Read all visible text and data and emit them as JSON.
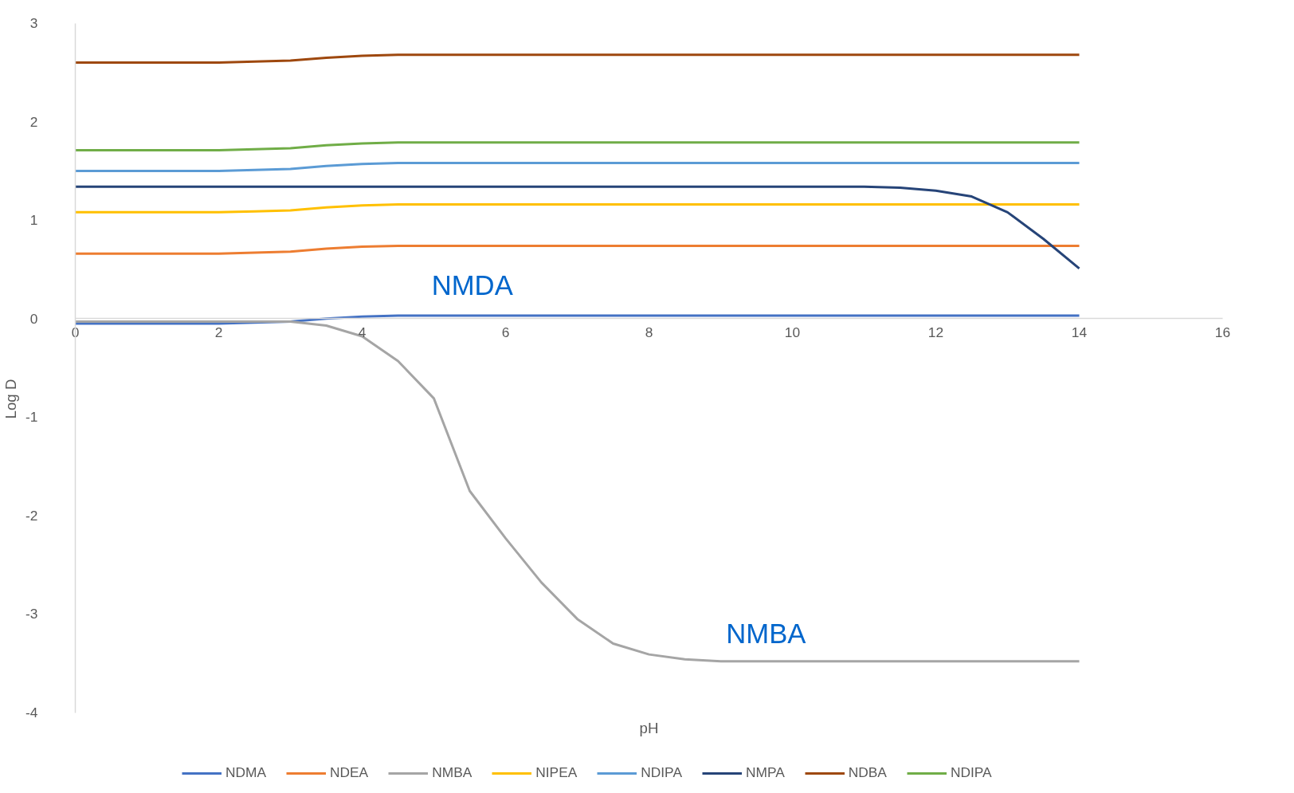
{
  "chart_data": {
    "type": "line",
    "xlabel": "pH",
    "ylabel": "Log D",
    "x": [
      0,
      0.5,
      1,
      1.5,
      2,
      2.5,
      3,
      3.5,
      4,
      4.5,
      5,
      5.5,
      6,
      6.5,
      7,
      7.5,
      8,
      8.5,
      9,
      9.5,
      10,
      10.5,
      11,
      11.5,
      12,
      12.5,
      13,
      13.5,
      14
    ],
    "xlim": [
      0,
      16
    ],
    "xticks": [
      0,
      2,
      4,
      6,
      8,
      10,
      12,
      14,
      16
    ],
    "ylim": [
      -4,
      3
    ],
    "yticks": [
      -4,
      -3,
      -2,
      -1,
      0,
      1,
      2,
      3
    ],
    "grid": false,
    "legend": "bottom",
    "marker": "none",
    "line_style": "solid",
    "series": [
      {
        "name": "NDMA",
        "color": "#4472c4",
        "values": [
          -0.05,
          -0.05,
          -0.05,
          -0.05,
          -0.05,
          -0.04,
          -0.03,
          0,
          0.02,
          0.03,
          0.03,
          0.03,
          0.03,
          0.03,
          0.03,
          0.03,
          0.03,
          0.03,
          0.03,
          0.03,
          0.03,
          0.03,
          0.03,
          0.03,
          0.03,
          0.03,
          0.03,
          0.03,
          0.03
        ]
      },
      {
        "name": "NDEA",
        "color": "#ed7d31",
        "values": [
          0.66,
          0.66,
          0.66,
          0.66,
          0.66,
          0.67,
          0.68,
          0.71,
          0.73,
          0.74,
          0.74,
          0.74,
          0.74,
          0.74,
          0.74,
          0.74,
          0.74,
          0.74,
          0.74,
          0.74,
          0.74,
          0.74,
          0.74,
          0.74,
          0.74,
          0.74,
          0.74,
          0.74,
          0.74
        ]
      },
      {
        "name": "NMBA",
        "color": "#a5a5a5",
        "values": [
          -0.03,
          -0.03,
          -0.03,
          -0.03,
          -0.03,
          -0.03,
          -0.03,
          -0.07,
          -0.18,
          -0.43,
          -0.81,
          -1.75,
          -2.23,
          -2.68,
          -3.05,
          -3.3,
          -3.41,
          -3.46,
          -3.48,
          -3.48,
          -3.48,
          -3.48,
          -3.48,
          -3.48,
          -3.48,
          -3.48,
          -3.48,
          -3.48,
          -3.48
        ]
      },
      {
        "name": "NIPEA",
        "color": "#ffc000",
        "values": [
          1.08,
          1.08,
          1.08,
          1.08,
          1.08,
          1.09,
          1.1,
          1.13,
          1.15,
          1.16,
          1.16,
          1.16,
          1.16,
          1.16,
          1.16,
          1.16,
          1.16,
          1.16,
          1.16,
          1.16,
          1.16,
          1.16,
          1.16,
          1.16,
          1.16,
          1.16,
          1.16,
          1.16,
          1.16
        ]
      },
      {
        "name": "NDIPA",
        "color": "#5b9bd5",
        "values": [
          1.5,
          1.5,
          1.5,
          1.5,
          1.5,
          1.51,
          1.52,
          1.55,
          1.57,
          1.58,
          1.58,
          1.58,
          1.58,
          1.58,
          1.58,
          1.58,
          1.58,
          1.58,
          1.58,
          1.58,
          1.58,
          1.58,
          1.58,
          1.58,
          1.58,
          1.58,
          1.58,
          1.58,
          1.58
        ]
      },
      {
        "name": "NMPA",
        "color": "#264478",
        "values": [
          1.34,
          1.34,
          1.34,
          1.34,
          1.34,
          1.34,
          1.34,
          1.34,
          1.34,
          1.34,
          1.34,
          1.34,
          1.34,
          1.34,
          1.34,
          1.34,
          1.34,
          1.34,
          1.34,
          1.34,
          1.34,
          1.34,
          1.34,
          1.33,
          1.3,
          1.24,
          1.08,
          0.81,
          0.51
        ]
      },
      {
        "name": "NDBA",
        "color": "#9e480e",
        "values": [
          2.6,
          2.6,
          2.6,
          2.6,
          2.6,
          2.61,
          2.62,
          2.65,
          2.67,
          2.68,
          2.68,
          2.68,
          2.68,
          2.68,
          2.68,
          2.68,
          2.68,
          2.68,
          2.68,
          2.68,
          2.68,
          2.68,
          2.68,
          2.68,
          2.68,
          2.68,
          2.68,
          2.68,
          2.68
        ]
      },
      {
        "name": "NDIPA",
        "color": "#70ad47",
        "values": [
          1.71,
          1.71,
          1.71,
          1.71,
          1.71,
          1.72,
          1.73,
          1.76,
          1.78,
          1.79,
          1.79,
          1.79,
          1.79,
          1.79,
          1.79,
          1.79,
          1.79,
          1.79,
          1.79,
          1.79,
          1.79,
          1.79,
          1.79,
          1.79,
          1.79,
          1.79,
          1.79,
          1.79,
          1.79
        ]
      }
    ],
    "annotations": [
      "NMDA",
      "NMBA"
    ]
  }
}
